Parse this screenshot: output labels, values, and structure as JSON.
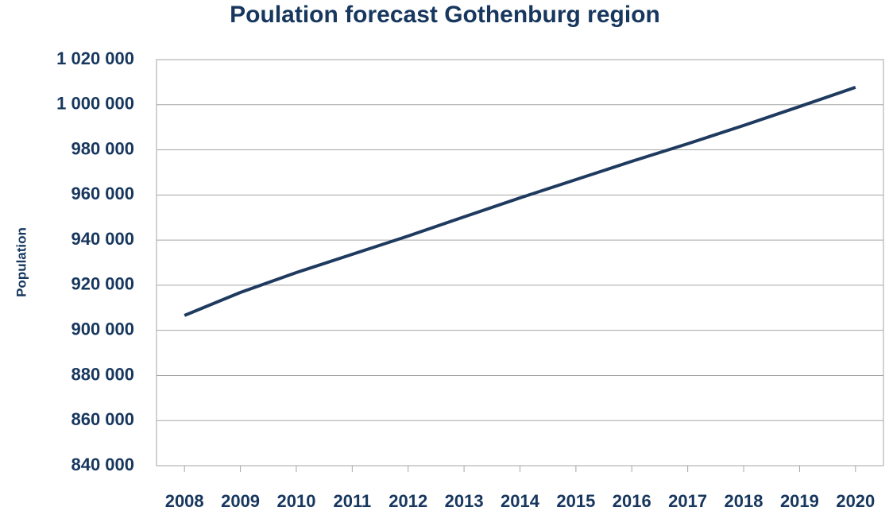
{
  "chart_data": {
    "type": "line",
    "title": "Poulation forecast Gothenburg region",
    "y_label": "Population",
    "categories": [
      "2008",
      "2009",
      "2010",
      "2011",
      "2012",
      "2013",
      "2014",
      "2015",
      "2016",
      "2017",
      "2018",
      "2019",
      "2020"
    ],
    "values": [
      906600,
      916800,
      925600,
      933700,
      941800,
      950300,
      958700,
      966800,
      974900,
      982700,
      990800,
      999200,
      1007700
    ],
    "color": "#1f3a5f",
    "ylim": [
      840000,
      1020000
    ],
    "yticks": [
      {
        "value": 840000,
        "label": "840 000"
      },
      {
        "value": 860000,
        "label": "860 000"
      },
      {
        "value": 880000,
        "label": "880 000"
      },
      {
        "value": 900000,
        "label": "900 000"
      },
      {
        "value": 920000,
        "label": "920 000"
      },
      {
        "value": 940000,
        "label": "940 000"
      },
      {
        "value": 960000,
        "label": "960 000"
      },
      {
        "value": 980000,
        "label": "980 000"
      },
      {
        "value": 1000000,
        "label": "1 000 000"
      },
      {
        "value": 1020000,
        "label": "1 020 000"
      }
    ],
    "grid": true
  }
}
